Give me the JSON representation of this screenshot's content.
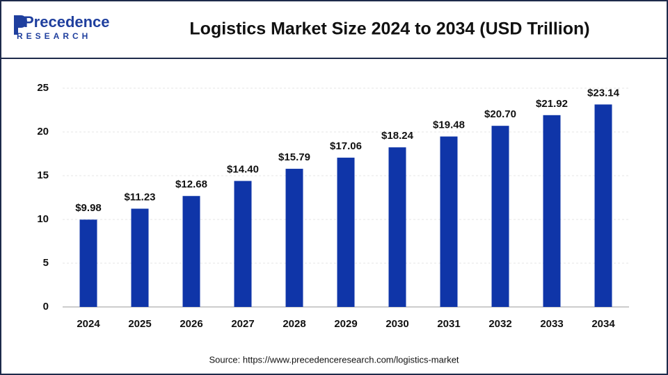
{
  "logo": {
    "name": "Precedence",
    "tagline": "RESEARCH"
  },
  "chart_data": {
    "type": "bar",
    "title": "Logistics Market Size 2024 to 2034 (USD Trillion)",
    "source": "Source: https://www.precedenceresearch.com/logistics-market",
    "categories": [
      "2024",
      "2025",
      "2026",
      "2027",
      "2028",
      "2029",
      "2030",
      "2031",
      "2032",
      "2033",
      "2034"
    ],
    "values": [
      9.98,
      11.23,
      12.68,
      14.4,
      15.79,
      17.06,
      18.24,
      19.48,
      20.7,
      21.92,
      23.14
    ],
    "value_labels": [
      "$9.98",
      "$11.23",
      "$12.68",
      "$14.40",
      "$15.79",
      "$17.06",
      "$18.24",
      "$19.48",
      "$20.70",
      "$21.92",
      "$23.14"
    ],
    "color": "#0f35a8",
    "ylim": [
      0,
      25
    ],
    "yticks": [
      0,
      5,
      10,
      15,
      20,
      25
    ],
    "grid": true
  }
}
